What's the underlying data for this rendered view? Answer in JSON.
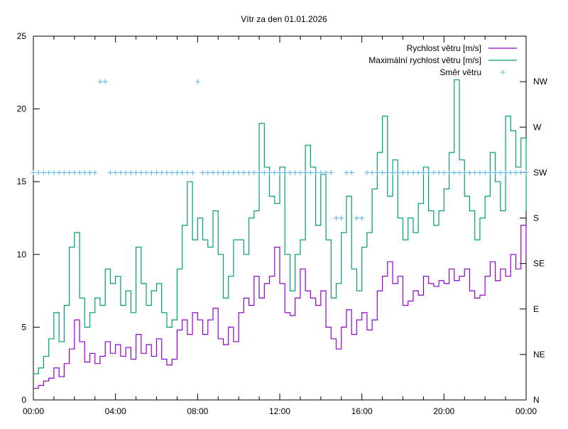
{
  "chart_data": {
    "type": "line",
    "title": "Vítr za den 01.01.2026",
    "xlabel": "",
    "ylabel": "",
    "xlim": [
      0,
      24
    ],
    "ylim": [
      0,
      25
    ],
    "y2lim": [
      0,
      360
    ],
    "x_ticks": [
      "00:00",
      "04:00",
      "08:00",
      "12:00",
      "16:00",
      "20:00",
      "00:00"
    ],
    "y_ticks": [
      "0",
      "5",
      "10",
      "15",
      "20",
      "25"
    ],
    "y2_ticks": [
      "N",
      "NE",
      "E",
      "SE",
      "S",
      "SW",
      "W",
      "NW"
    ],
    "legend_position": "top-right",
    "x_step_hours": 0.25,
    "series": [
      {
        "name": "Rychlost větru [m/s]",
        "color": "#9400d3",
        "style": "line",
        "values": [
          0.8,
          1.0,
          1.3,
          1.5,
          2.2,
          1.6,
          2.5,
          3.5,
          5.5,
          4.0,
          2.6,
          3.2,
          2.5,
          3.0,
          4.0,
          3.2,
          3.8,
          3.0,
          3.6,
          2.8,
          4.5,
          3.2,
          3.8,
          3.0,
          4.2,
          2.8,
          2.4,
          2.8,
          4.8,
          5.5,
          4.5,
          6.0,
          5.5,
          4.5,
          5.5,
          6.3,
          4.2,
          3.8,
          5.0,
          4.0,
          6.0,
          7.0,
          6.5,
          8.5,
          7.0,
          8.0,
          8.5,
          10.5,
          8.0,
          6.0,
          5.8,
          7.0,
          9.0,
          7.5,
          7.0,
          6.5,
          7.5,
          5.0,
          4.2,
          3.5,
          5.0,
          6.2,
          4.5,
          5.5,
          6.0,
          4.8,
          5.5,
          7.5,
          8.5,
          9.5,
          8.0,
          8.5,
          6.5,
          6.8,
          7.5,
          7.2,
          8.5,
          8.0,
          7.8,
          8.2,
          8.0,
          9.0,
          8.2,
          8.5,
          9.0,
          7.5,
          7.0,
          7.2,
          8.5,
          9.5,
          8.2,
          9.0,
          8.5,
          10.0,
          9.0,
          12.0,
          10.0
        ]
      },
      {
        "name": "Maximální rychlost větru [m/s]",
        "color": "#009e73",
        "style": "line",
        "values": [
          1.8,
          2.2,
          3.0,
          4.2,
          6.0,
          4.0,
          6.5,
          10.5,
          11.5,
          7.0,
          5.0,
          6.0,
          7.0,
          6.5,
          9.0,
          8.0,
          8.5,
          6.5,
          7.5,
          6.0,
          10.5,
          8.0,
          6.5,
          7.5,
          8.0,
          6.0,
          5.0,
          5.5,
          9.0,
          12.0,
          15.0,
          11.0,
          12.5,
          11.0,
          10.5,
          13.0,
          10.0,
          7.0,
          8.5,
          11.0,
          11.0,
          10.0,
          12.5,
          13.0,
          19.0,
          16.0,
          14.0,
          13.5,
          16.0,
          10.0,
          7.5,
          10.0,
          11.0,
          17.5,
          16.0,
          12.0,
          15.5,
          11.0,
          7.0,
          8.0,
          11.5,
          14.0,
          9.0,
          7.5,
          10.5,
          11.5,
          14.5,
          17.0,
          19.5,
          14.0,
          16.5,
          12.5,
          11.0,
          12.5,
          11.5,
          13.5,
          16.0,
          13.0,
          12.0,
          13.0,
          14.5,
          17.0,
          22.0,
          16.5,
          14.0,
          13.0,
          11.0,
          12.5,
          14.0,
          17.0,
          15.0,
          13.0,
          19.5,
          18.5,
          16.0,
          18.0,
          13.0
        ]
      },
      {
        "name": "Směr větru",
        "color": "#56b4e9",
        "style": "points",
        "axis": "y2",
        "values": [
          225,
          225,
          225,
          225,
          225,
          225,
          225,
          225,
          225,
          225,
          225,
          225,
          225,
          315,
          315,
          225,
          225,
          225,
          225,
          225,
          225,
          225,
          225,
          225,
          225,
          225,
          225,
          225,
          225,
          225,
          225,
          225,
          315,
          225,
          225,
          225,
          225,
          225,
          225,
          225,
          225,
          225,
          225,
          225,
          225,
          225,
          225,
          225,
          225,
          225,
          225,
          225,
          225,
          225,
          225,
          225,
          225,
          225,
          225,
          180,
          180,
          225,
          225,
          180,
          180,
          225,
          225,
          225,
          225,
          225,
          225,
          225,
          225,
          225,
          225,
          225,
          225,
          225,
          225,
          225,
          225,
          225,
          225,
          225,
          225,
          225,
          225,
          225,
          225,
          225,
          225,
          225,
          225,
          225,
          225,
          225,
          225
        ]
      }
    ]
  }
}
